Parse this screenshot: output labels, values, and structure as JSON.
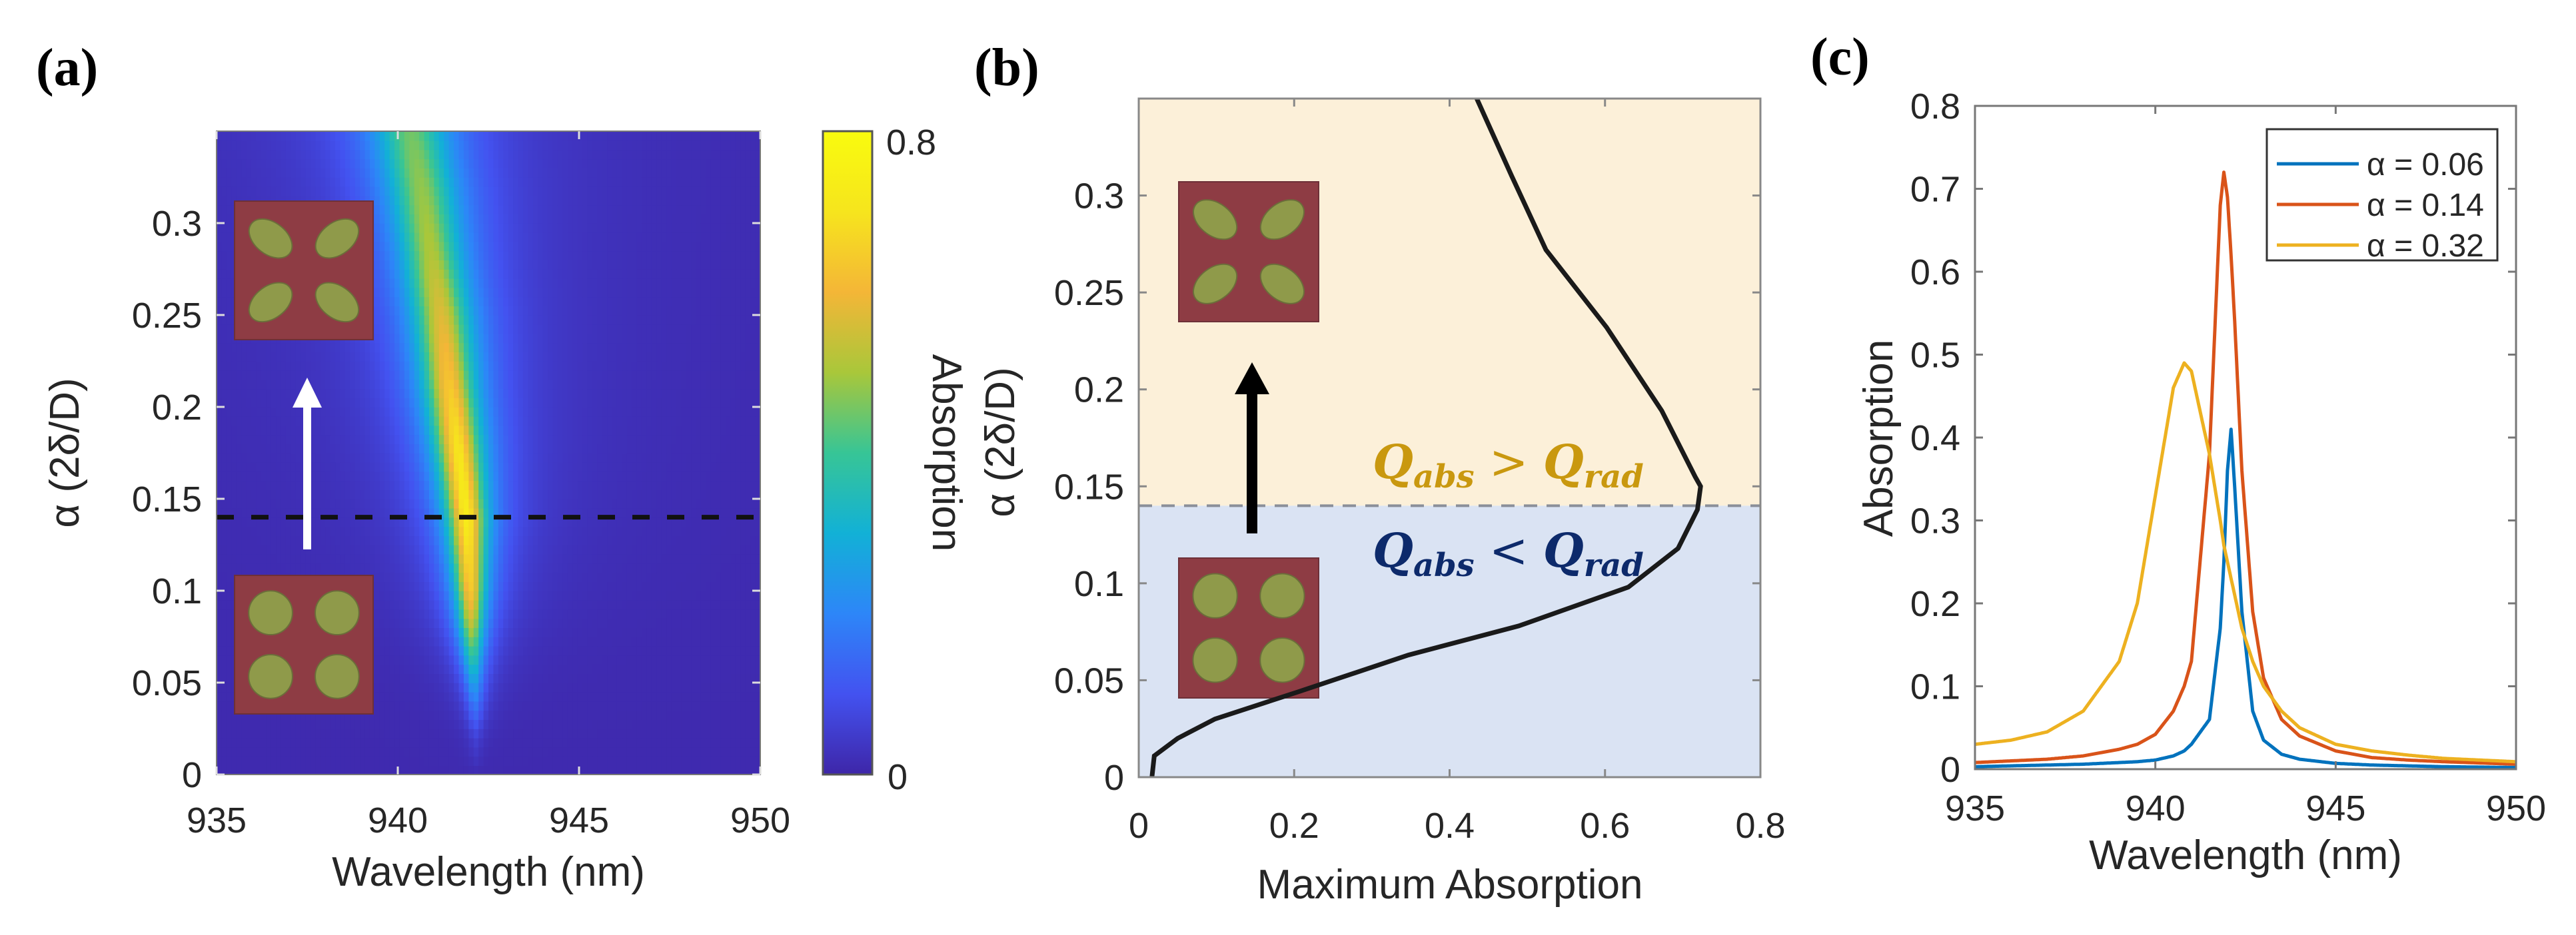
{
  "colors": {
    "parula": [
      "#3e26a8",
      "#4352f0",
      "#2d86f8",
      "#12b1d6",
      "#37c596",
      "#a9c73a",
      "#f4b637",
      "#f6e51d",
      "#f9fb0e"
    ],
    "inset_background": "#8e3c44",
    "inset_particle": "#8f9a4a",
    "region_upper": "#fcf0d9",
    "region_lower": "#dae3f3",
    "label_upper": "#c9980f",
    "label_lower": "#0d2a6b",
    "series": [
      "#0072bd",
      "#d95319",
      "#edb120"
    ]
  },
  "chart_data": [
    {
      "panel_label": "(a)",
      "type": "heatmap",
      "xlabel": "Wavelength (nm)",
      "ylabel": "α (2δ/D)",
      "xlim": [
        935,
        950
      ],
      "ylim": [
        0,
        0.35
      ],
      "xticks": [
        935,
        940,
        945,
        950
      ],
      "yticks": [
        0,
        0.05,
        0.1,
        0.15,
        0.2,
        0.25,
        0.3
      ],
      "ytick_labels": [
        "0",
        "0.05",
        "0.1",
        "0.15",
        "0.2",
        "0.25",
        "0.3"
      ],
      "colorbar": {
        "label": "Absorption",
        "range": [
          0,
          0.8
        ],
        "tick_labels": [
          "0",
          "0.8"
        ],
        "colormap": "parula"
      },
      "ridge": {
        "alpha": [
          0.02,
          0.0375,
          0.05,
          0.082,
          0.1,
          0.14,
          0.18,
          0.216,
          0.25,
          0.283,
          0.32,
          0.35
        ],
        "peak_wavelength_nm": [
          942.15,
          942.13,
          942.1,
          942.03,
          942.0,
          941.9,
          941.65,
          941.4,
          941.2,
          940.93,
          940.65,
          940.36
        ],
        "peak_absorption": [
          0.05,
          0.16,
          0.25,
          0.52,
          0.63,
          0.72,
          0.69,
          0.62,
          0.56,
          0.5,
          0.47,
          0.44
        ]
      },
      "dashed_line_alpha": 0.14,
      "insets": [
        "circular-particles-unit-cell",
        "elliptical-particles-unit-cell"
      ],
      "arrow": "up"
    },
    {
      "panel_label": "(b)",
      "type": "line",
      "xlabel": "Maximum Absorption",
      "ylabel": "α (2δ/D)",
      "xlim": [
        0,
        0.8
      ],
      "ylim": [
        0,
        0.35
      ],
      "xticks": [
        0,
        0.2,
        0.4,
        0.6,
        0.8
      ],
      "xtick_labels": [
        "0",
        "0.2",
        "0.4",
        "0.6",
        "0.8"
      ],
      "yticks": [
        0,
        0.05,
        0.1,
        0.15,
        0.2,
        0.25,
        0.3
      ],
      "ytick_labels": [
        "0",
        "0.05",
        "0.1",
        "0.15",
        "0.2",
        "0.25",
        "0.3"
      ],
      "x": [
        0.017,
        0.02,
        0.05,
        0.098,
        0.205,
        0.347,
        0.489,
        0.63,
        0.694,
        0.719,
        0.723,
        0.716,
        0.673,
        0.602,
        0.524,
        0.48,
        0.435
      ],
      "y": [
        0,
        0.011,
        0.02,
        0.03,
        0.044,
        0.063,
        0.078,
        0.098,
        0.118,
        0.138,
        0.15,
        0.155,
        0.189,
        0.232,
        0.272,
        0.31,
        0.35
      ],
      "threshold_alpha": 0.14,
      "annotations": {
        "upper": {
          "lhs": "Q",
          "lhs_sub": "abs",
          "op": " > ",
          "rhs": "Q",
          "rhs_sub": "rad"
        },
        "lower": {
          "lhs": "Q",
          "lhs_sub": "abs",
          "op": " < ",
          "rhs": "Q",
          "rhs_sub": "rad"
        }
      }
    },
    {
      "panel_label": "(c)",
      "type": "line",
      "xlabel": "Wavelength (nm)",
      "ylabel": "Absorption",
      "xlim": [
        935,
        950
      ],
      "ylim": [
        0,
        0.8
      ],
      "xticks": [
        935,
        940,
        945,
        950
      ],
      "yticks": [
        0,
        0.1,
        0.2,
        0.3,
        0.4,
        0.5,
        0.6,
        0.7,
        0.8
      ],
      "ytick_labels": [
        "0",
        "0.1",
        "0.2",
        "0.3",
        "0.4",
        "0.5",
        "0.6",
        "0.7",
        "0.8"
      ],
      "legend_position": "top-right",
      "x": [
        935,
        936,
        937,
        938,
        939,
        939.5,
        940,
        940.5,
        940.8,
        941,
        941.5,
        941.8,
        941.9,
        942,
        942.1,
        942.2,
        942.4,
        942.7,
        943,
        943.5,
        944,
        945,
        946,
        947,
        948,
        950
      ],
      "series": [
        {
          "name": "α = 0.06",
          "values": [
            0.003,
            0.004,
            0.005,
            0.006,
            0.008,
            0.009,
            0.011,
            0.016,
            0.022,
            0.03,
            0.06,
            0.17,
            0.25,
            0.36,
            0.41,
            0.34,
            0.19,
            0.07,
            0.035,
            0.018,
            0.012,
            0.007,
            0.005,
            0.004,
            0.003,
            0.002
          ]
        },
        {
          "name": "α = 0.14",
          "values": [
            0.008,
            0.01,
            0.012,
            0.016,
            0.024,
            0.03,
            0.042,
            0.07,
            0.1,
            0.13,
            0.38,
            0.68,
            0.72,
            0.69,
            0.62,
            0.54,
            0.36,
            0.19,
            0.11,
            0.06,
            0.04,
            0.022,
            0.014,
            0.011,
            0.009,
            0.006
          ]
        },
        {
          "name": "α = 0.32",
          "values": [
            0.03,
            0.035,
            0.045,
            0.07,
            0.13,
            0.2,
            0.33,
            0.46,
            0.49,
            0.48,
            0.38,
            0.3,
            0.27,
            0.25,
            0.23,
            0.21,
            0.17,
            0.13,
            0.1,
            0.07,
            0.05,
            0.03,
            0.022,
            0.017,
            0.013,
            0.009
          ]
        }
      ]
    }
  ]
}
